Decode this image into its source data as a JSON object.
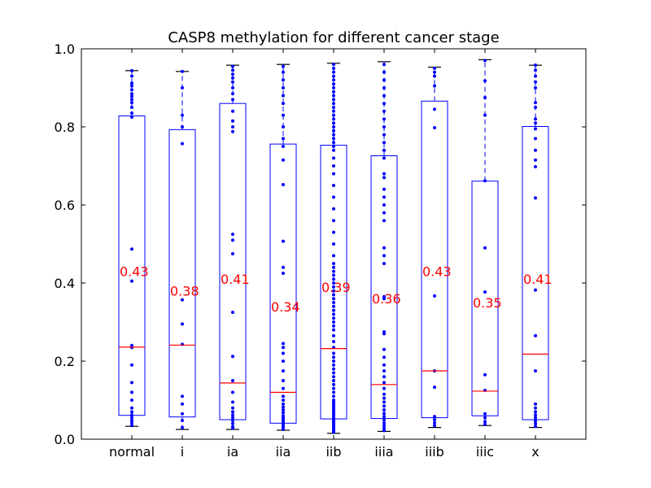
{
  "chart_data": {
    "type": "box",
    "title": "CASP8 methylation for different cancer stage",
    "xlabel": "",
    "ylabel": "",
    "ylim": [
      0.0,
      1.0
    ],
    "yticks": [
      "0.0",
      "0.2",
      "0.4",
      "0.6",
      "0.8",
      "1.0"
    ],
    "ytick_values": [
      0.0,
      0.2,
      0.4,
      0.6,
      0.8,
      1.0
    ],
    "grid": false,
    "categories": [
      "normal",
      "i",
      "ia",
      "iia",
      "iib",
      "iiia",
      "iiib",
      "iiic",
      "x"
    ],
    "colors": {
      "box": "#0000ff",
      "median": "#ff0000",
      "points": "#0000ff",
      "annotation": "#ff0000",
      "whisker_cap": "#000000",
      "axes": "#000000"
    },
    "series": [
      {
        "category": "normal",
        "whisker_low": 0.033,
        "q1": 0.061,
        "median": 0.236,
        "q3": 0.828,
        "whisker_high": 0.944,
        "mean_label": "0.43",
        "points": [
          0.035,
          0.042,
          0.048,
          0.055,
          0.062,
          0.07,
          0.08,
          0.1,
          0.12,
          0.145,
          0.19,
          0.235,
          0.24,
          0.405,
          0.487,
          0.825,
          0.835,
          0.85,
          0.862,
          0.87,
          0.878,
          0.885,
          0.895,
          0.905,
          0.912,
          0.93,
          0.944
        ]
      },
      {
        "category": "i",
        "whisker_low": 0.025,
        "q1": 0.057,
        "median": 0.241,
        "q3": 0.793,
        "whisker_high": 0.942,
        "mean_label": "0.38",
        "points": [
          0.03,
          0.048,
          0.065,
          0.09,
          0.11,
          0.243,
          0.295,
          0.357,
          0.757,
          0.8,
          0.83,
          0.9,
          0.942
        ]
      },
      {
        "category": "ia",
        "whisker_low": 0.025,
        "q1": 0.05,
        "median": 0.144,
        "q3": 0.86,
        "whisker_high": 0.958,
        "mean_label": "0.41",
        "points": [
          0.028,
          0.032,
          0.04,
          0.048,
          0.055,
          0.062,
          0.07,
          0.08,
          0.095,
          0.12,
          0.15,
          0.212,
          0.325,
          0.475,
          0.51,
          0.525,
          0.788,
          0.8,
          0.815,
          0.84,
          0.87,
          0.885,
          0.9,
          0.915,
          0.925,
          0.935,
          0.945,
          0.955
        ]
      },
      {
        "category": "iia",
        "whisker_low": 0.023,
        "q1": 0.041,
        "median": 0.12,
        "q3": 0.756,
        "whisker_high": 0.96,
        "mean_label": "0.34",
        "points": [
          0.025,
          0.03,
          0.035,
          0.04,
          0.045,
          0.05,
          0.055,
          0.06,
          0.068,
          0.075,
          0.082,
          0.09,
          0.1,
          0.11,
          0.13,
          0.15,
          0.175,
          0.2,
          0.22,
          0.235,
          0.245,
          0.425,
          0.44,
          0.507,
          0.652,
          0.715,
          0.75,
          0.77,
          0.8,
          0.83,
          0.86,
          0.88,
          0.9,
          0.92,
          0.94,
          0.955
        ]
      },
      {
        "category": "iib",
        "whisker_low": 0.015,
        "q1": 0.052,
        "median": 0.232,
        "q3": 0.753,
        "whisker_high": 0.963,
        "mean_label": "0.39",
        "points": [
          0.018,
          0.022,
          0.026,
          0.03,
          0.034,
          0.038,
          0.042,
          0.046,
          0.05,
          0.055,
          0.06,
          0.065,
          0.07,
          0.075,
          0.08,
          0.085,
          0.09,
          0.095,
          0.1,
          0.11,
          0.12,
          0.13,
          0.14,
          0.15,
          0.16,
          0.17,
          0.18,
          0.19,
          0.2,
          0.21,
          0.22,
          0.235,
          0.25,
          0.265,
          0.28,
          0.29,
          0.3,
          0.31,
          0.32,
          0.33,
          0.34,
          0.35,
          0.36,
          0.37,
          0.38,
          0.39,
          0.4,
          0.41,
          0.42,
          0.43,
          0.44,
          0.45,
          0.47,
          0.5,
          0.53,
          0.56,
          0.59,
          0.62,
          0.65,
          0.68,
          0.7,
          0.72,
          0.74,
          0.75,
          0.76,
          0.77,
          0.78,
          0.79,
          0.8,
          0.81,
          0.82,
          0.83,
          0.84,
          0.85,
          0.86,
          0.87,
          0.88,
          0.89,
          0.9,
          0.91,
          0.92,
          0.93,
          0.94,
          0.95,
          0.96
        ]
      },
      {
        "category": "iiia",
        "whisker_low": 0.02,
        "q1": 0.053,
        "median": 0.14,
        "q3": 0.726,
        "whisker_high": 0.967,
        "mean_label": "0.36",
        "points": [
          0.022,
          0.028,
          0.035,
          0.042,
          0.05,
          0.058,
          0.066,
          0.075,
          0.085,
          0.095,
          0.105,
          0.115,
          0.13,
          0.145,
          0.16,
          0.175,
          0.19,
          0.21,
          0.23,
          0.27,
          0.275,
          0.36,
          0.365,
          0.45,
          0.47,
          0.49,
          0.56,
          0.58,
          0.6,
          0.62,
          0.64,
          0.67,
          0.68,
          0.72,
          0.74,
          0.76,
          0.78,
          0.8,
          0.82,
          0.84,
          0.86,
          0.88,
          0.9,
          0.92,
          0.94,
          0.96
        ]
      },
      {
        "category": "iiib",
        "whisker_low": 0.03,
        "q1": 0.055,
        "median": 0.175,
        "q3": 0.866,
        "whisker_high": 0.953,
        "mean_label": "0.43",
        "points": [
          0.035,
          0.042,
          0.05,
          0.058,
          0.133,
          0.175,
          0.367,
          0.798,
          0.845,
          0.905,
          0.93,
          0.94,
          0.95
        ]
      },
      {
        "category": "iiic",
        "whisker_low": 0.035,
        "q1": 0.06,
        "median": 0.123,
        "q3": 0.661,
        "whisker_high": 0.972,
        "mean_label": "0.35",
        "points": [
          0.038,
          0.045,
          0.055,
          0.065,
          0.125,
          0.165,
          0.377,
          0.49,
          0.662,
          0.83,
          0.875,
          0.918,
          0.97
        ]
      },
      {
        "category": "x",
        "whisker_low": 0.03,
        "q1": 0.05,
        "median": 0.218,
        "q3": 0.801,
        "whisker_high": 0.958,
        "mean_label": "0.41",
        "points": [
          0.033,
          0.04,
          0.047,
          0.055,
          0.062,
          0.07,
          0.08,
          0.09,
          0.175,
          0.265,
          0.382,
          0.618,
          0.698,
          0.715,
          0.74,
          0.77,
          0.795,
          0.81,
          0.82,
          0.85,
          0.862,
          0.9,
          0.915,
          0.93,
          0.945,
          0.958
        ]
      }
    ]
  }
}
